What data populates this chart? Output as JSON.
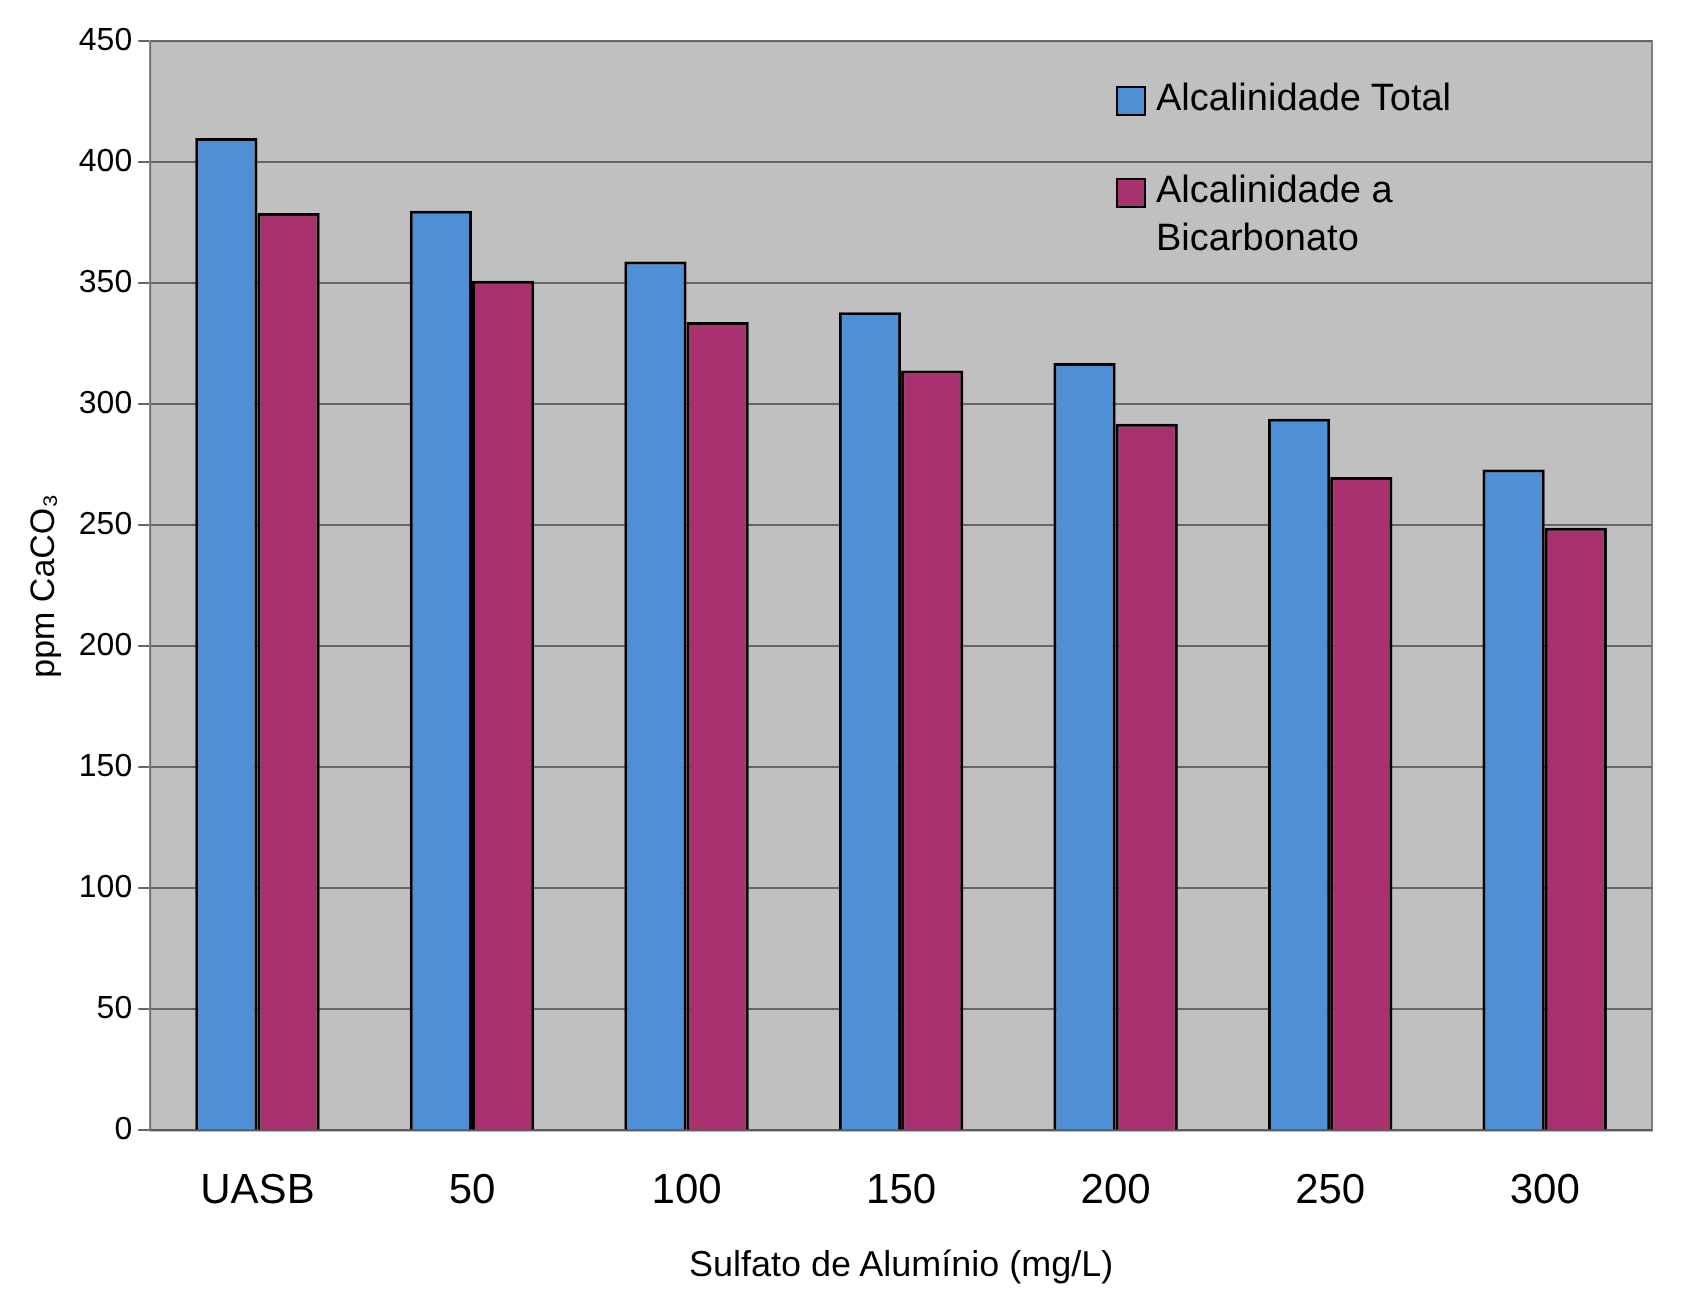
{
  "chart_data": {
    "type": "bar",
    "xlabel": "Sulfato de Alumínio (mg/L)",
    "ylabel": "ppm CaCO₃",
    "categories": [
      "UASB",
      "50",
      "100",
      "150",
      "200",
      "250",
      "300"
    ],
    "series": [
      {
        "name": "Alcalinidade Total",
        "color": "#4f8fd6",
        "values": [
          410,
          380,
          359,
          338,
          317,
          294,
          273
        ]
      },
      {
        "name": "Alcalinidade a Bicarbonato",
        "color": "#a8326e",
        "values": [
          379,
          351,
          334,
          314,
          292,
          270,
          249
        ]
      }
    ],
    "ylim": [
      0,
      450
    ],
    "yticks": [
      0,
      50,
      100,
      150,
      200,
      250,
      300,
      350,
      400,
      450
    ],
    "grid": "y",
    "legend": "top right"
  }
}
